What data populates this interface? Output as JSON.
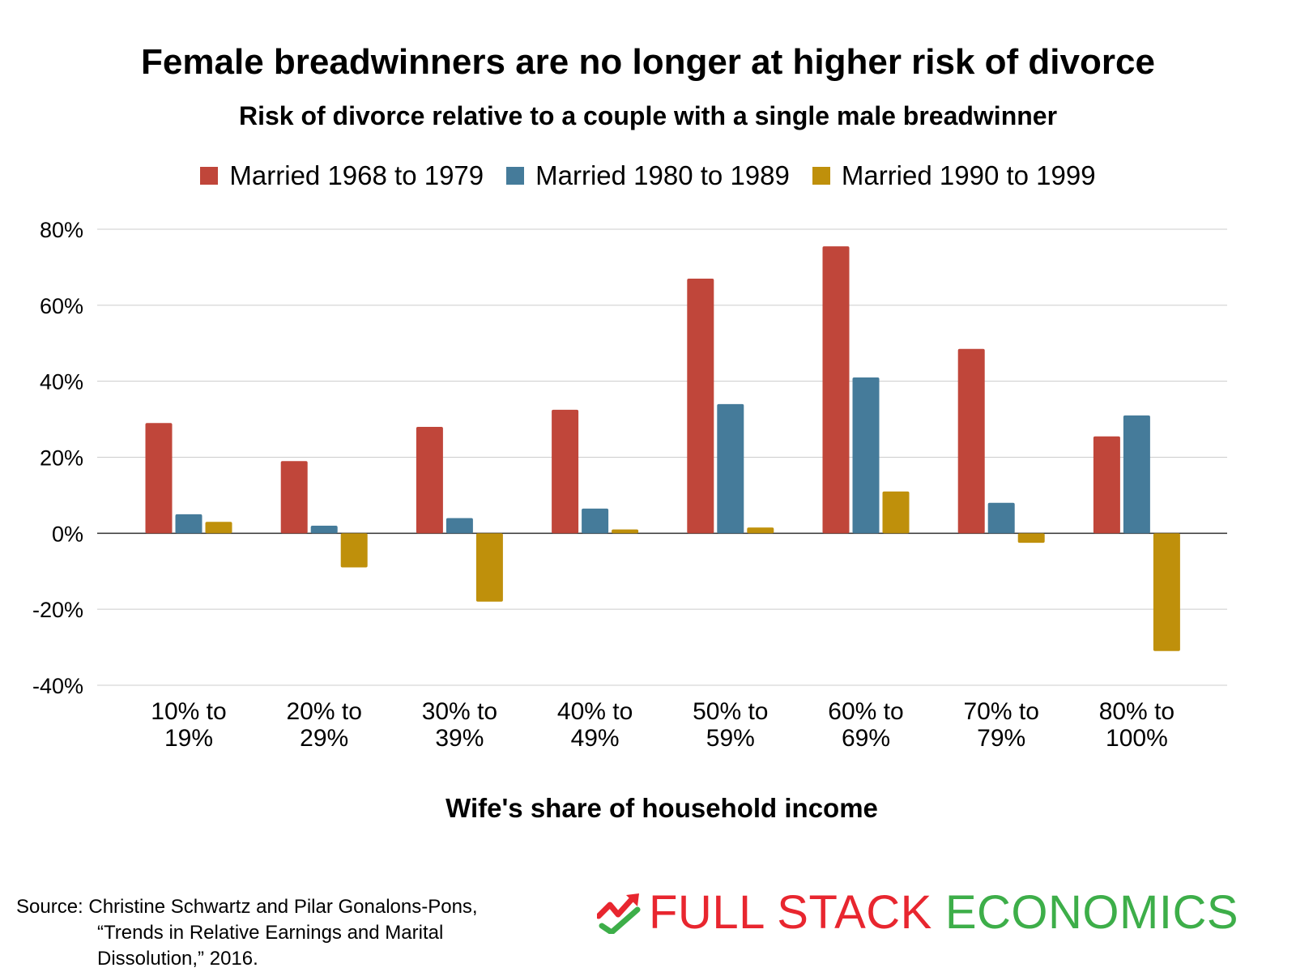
{
  "colors": {
    "s1": "#c0463a",
    "s2": "#457b9a",
    "s3": "#bf900b",
    "brand_red": "#e8262f",
    "brand_green": "#3dae49"
  },
  "chart_data": {
    "type": "bar",
    "title": "Female breadwinners are no longer at higher risk of divorce",
    "subtitle": "Risk of divorce relative to a couple with a single male breadwinner",
    "xlabel": "Wife's share of household income",
    "ylabel": "",
    "ylim": [
      -40,
      80
    ],
    "yticks": [
      80,
      60,
      40,
      20,
      0,
      -20,
      -40
    ],
    "ytick_labels": [
      "80%",
      "60%",
      "40%",
      "20%",
      "0%",
      "-20%",
      "-40%"
    ],
    "grid": true,
    "legend_position": "top",
    "categories": [
      [
        "10% to",
        "19%"
      ],
      [
        "20% to",
        "29%"
      ],
      [
        "30% to",
        "39%"
      ],
      [
        "40% to",
        "49%"
      ],
      [
        "50% to",
        "59%"
      ],
      [
        "60% to",
        "69%"
      ],
      [
        "70% to",
        "79%"
      ],
      [
        "80% to",
        "100%"
      ]
    ],
    "series": [
      {
        "name": "Married 1968 to 1979",
        "values": [
          29,
          19,
          28,
          32.5,
          67,
          75.5,
          48.5,
          25.5
        ]
      },
      {
        "name": "Married 1980 to 1989",
        "values": [
          5,
          2,
          4,
          6.5,
          34,
          41,
          8,
          31
        ]
      },
      {
        "name": "Married 1990 to 1999",
        "values": [
          3,
          -9,
          -18,
          1,
          1.5,
          11,
          -2.5,
          -31
        ]
      }
    ]
  },
  "source": {
    "line1": "Source: Christine Schwartz and Pilar Gonalons-Pons,",
    "line2": "“Trends in Relative Earnings and Marital",
    "line3": "Dissolution,” 2016."
  },
  "brand": {
    "part1": "FULL STACK",
    "part2": "ECONOMICS",
    "logo_icon": "trend-check-icon"
  }
}
